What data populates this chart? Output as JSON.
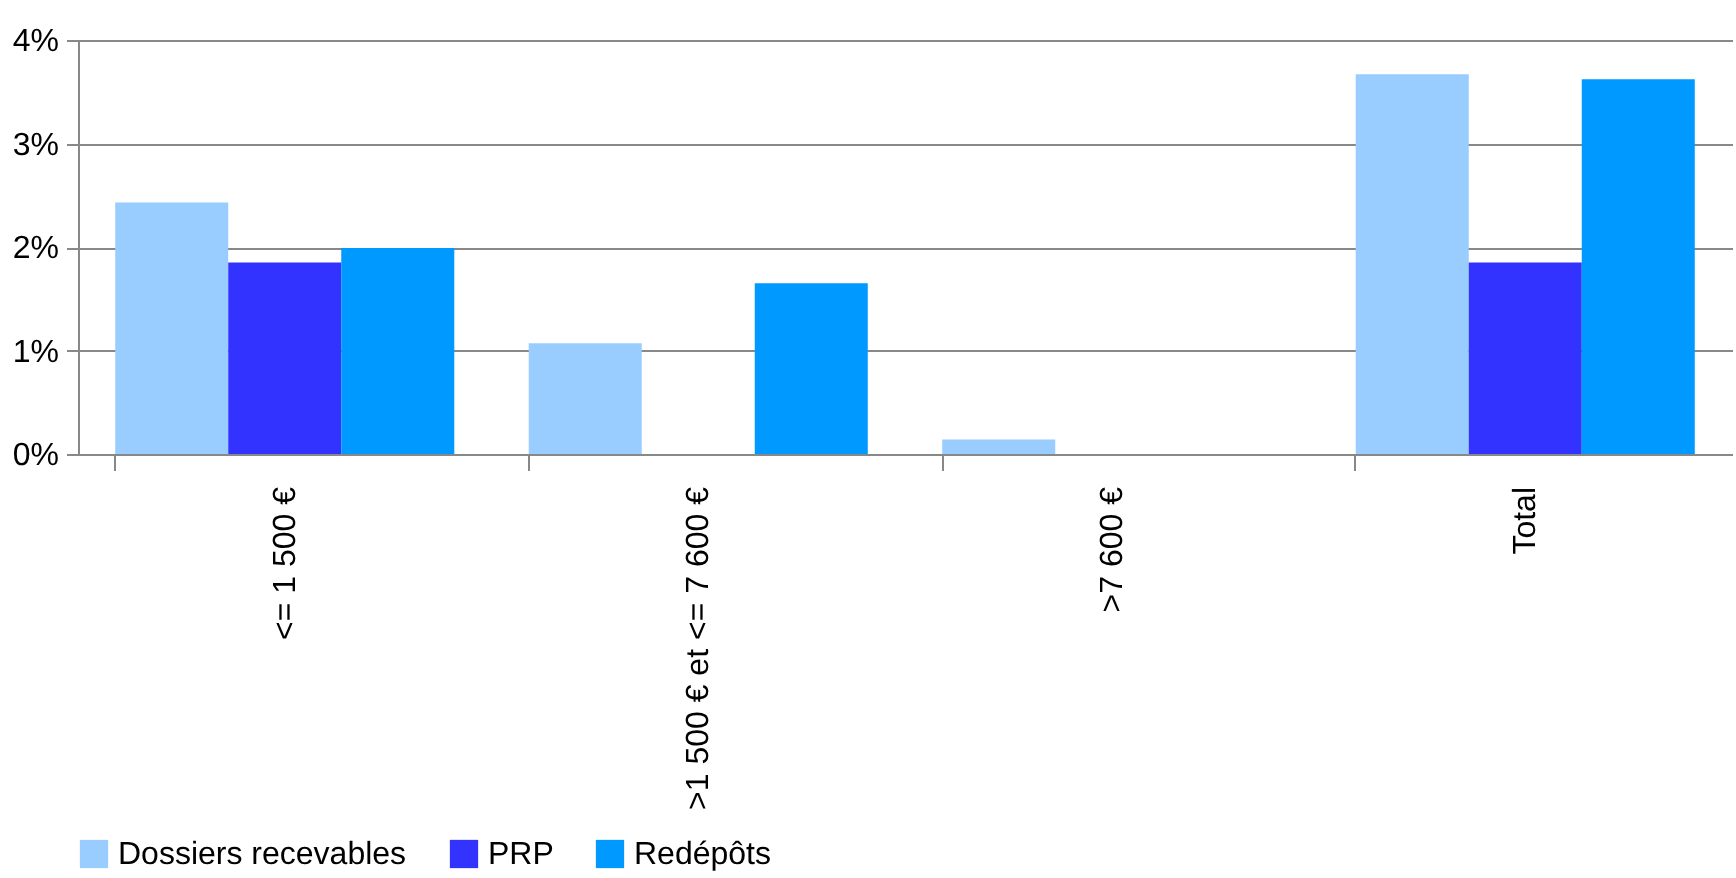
{
  "chart_data": {
    "type": "bar",
    "categories": [
      "<= 1 500 €",
      ">1 500 € et <= 7 600 €",
      ">7 600 €",
      "Total"
    ],
    "series": [
      {
        "name": "Dossiers recevables",
        "color": "#99ccff",
        "values": [
          2.43,
          1.07,
          0.14,
          3.67
        ]
      },
      {
        "name": "PRP",
        "color": "#3333ff",
        "values": [
          1.85,
          null,
          null,
          1.85
        ]
      },
      {
        "name": "Redépôts",
        "color": "#0099ff",
        "values": [
          1.99,
          1.65,
          null,
          3.62
        ]
      }
    ],
    "ylim": [
      0,
      4
    ],
    "yticks": [
      {
        "value": 0,
        "label": "0%"
      },
      {
        "value": 1,
        "label": "1%"
      },
      {
        "value": 2,
        "label": "2%"
      },
      {
        "value": 3,
        "label": "3%"
      },
      {
        "value": 4,
        "label": "4%"
      }
    ],
    "grid": "y",
    "legend": "bottom"
  }
}
